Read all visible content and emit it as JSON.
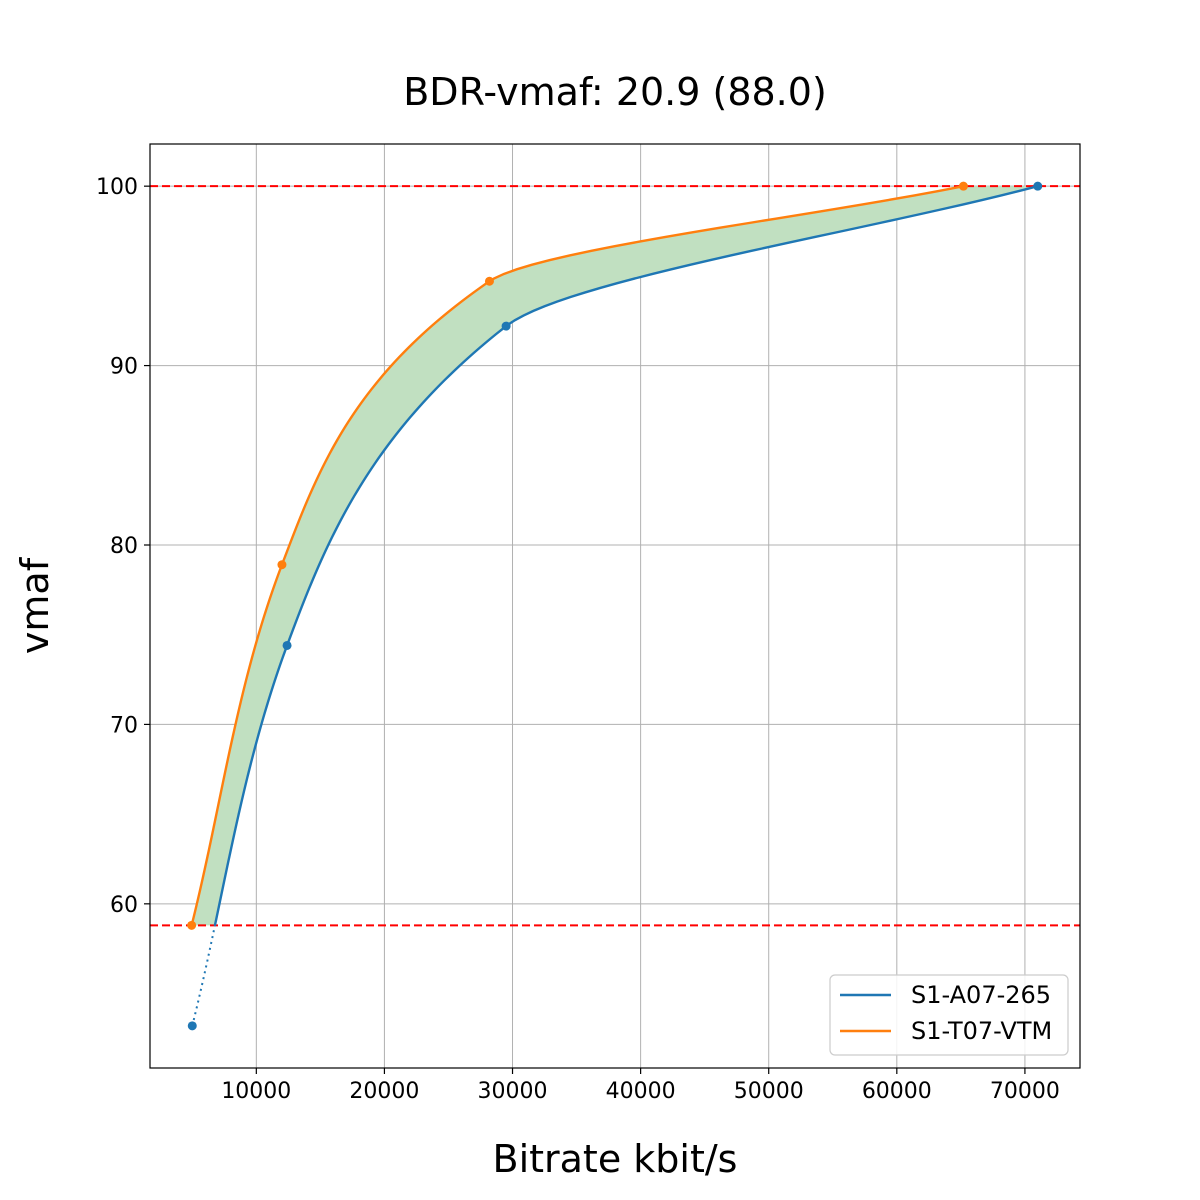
{
  "chart_data": {
    "type": "line",
    "title": "BDR-vmaf: 20.9 (88.0)",
    "xlabel": "Bitrate kbit/s",
    "ylabel": "vmaf",
    "xlim": [
      1700,
      74300
    ],
    "ylim": [
      50.85,
      102.35
    ],
    "xticks": [
      10000,
      20000,
      30000,
      40000,
      50000,
      60000,
      70000
    ],
    "yticks": [
      60,
      70,
      80,
      90,
      100
    ],
    "grid": true,
    "legend_position": "bottom-right",
    "hlines": [
      {
        "y": 100,
        "color": "#ff0000",
        "style": "dashed"
      },
      {
        "y": 58.8,
        "color": "#ff0000",
        "style": "dashed"
      }
    ],
    "fill_color": "#c1e0c1",
    "series": [
      {
        "name": "S1-A07-265",
        "color": "#1f77b4",
        "points": [
          [
            5000,
            53.2
          ],
          [
            12400,
            74.4
          ],
          [
            29500,
            92.2
          ],
          [
            71000,
            100
          ]
        ],
        "extrapolated_from": 58.8
      },
      {
        "name": "S1-T07-VTM",
        "color": "#ff7f0e",
        "points": [
          [
            4950,
            58.8
          ],
          [
            12000,
            78.9
          ],
          [
            28200,
            94.7
          ],
          [
            65200,
            100
          ]
        ]
      }
    ]
  }
}
